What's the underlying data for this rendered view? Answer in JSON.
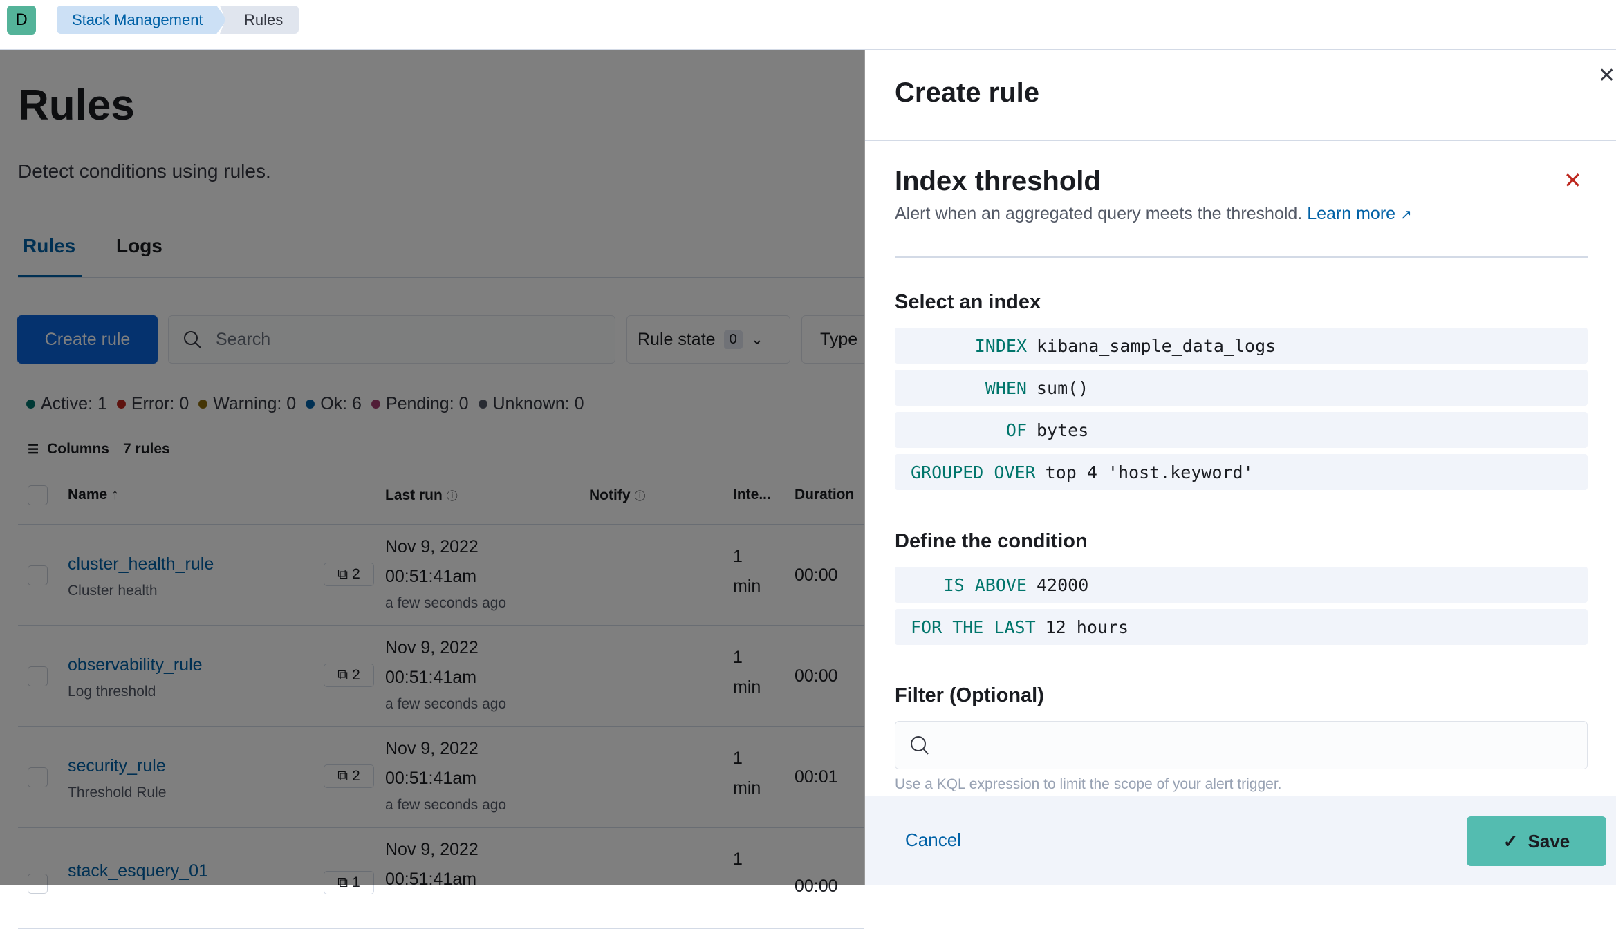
{
  "header": {
    "avatar": "D",
    "breadcrumbs": [
      "Stack Management",
      "Rules"
    ]
  },
  "page": {
    "title": "Rules",
    "subtitle": "Detect conditions using rules.",
    "tabs": [
      "Rules",
      "Logs"
    ],
    "create_label": "Create rule",
    "search_placeholder": "Search",
    "rule_state_label": "Rule state",
    "rule_state_count": "0",
    "type_label": "Type",
    "status": [
      {
        "label": "Active: 1",
        "color": "#00726b"
      },
      {
        "label": "Error: 0",
        "color": "#bd271e"
      },
      {
        "label": "Warning: 0",
        "color": "#8a6a0a"
      },
      {
        "label": "Ok: 6",
        "color": "#0061a6"
      },
      {
        "label": "Pending: 0",
        "color": "#a33a6e"
      },
      {
        "label": "Unknown: 0",
        "color": "#535966"
      }
    ],
    "columns_label": "Columns",
    "rule_count": "7 rules",
    "headers": {
      "name": "Name",
      "last_run": "Last run",
      "notify": "Notify",
      "interval": "Inte...",
      "duration": "Duration"
    },
    "rows": [
      {
        "name": "cluster_health_rule",
        "type": "Cluster health",
        "tags": "2",
        "date": "Nov 9, 2022",
        "time": "00:51:41am",
        "ago": "a few seconds ago",
        "interval_num": "1",
        "interval_unit": "min",
        "duration": "00:00"
      },
      {
        "name": "observability_rule",
        "type": "Log threshold",
        "tags": "2",
        "date": "Nov 9, 2022",
        "time": "00:51:41am",
        "ago": "a few seconds ago",
        "interval_num": "1",
        "interval_unit": "min",
        "duration": "00:00"
      },
      {
        "name": "security_rule",
        "type": "Threshold Rule",
        "tags": "2",
        "date": "Nov 9, 2022",
        "time": "00:51:41am",
        "ago": "a few seconds ago",
        "interval_num": "1",
        "interval_unit": "min",
        "duration": "00:01"
      },
      {
        "name": "stack_esquery_01",
        "type": "",
        "tags": "1",
        "date": "Nov 9, 2022",
        "time": "00:51:41am",
        "ago": "",
        "interval_num": "1",
        "interval_unit": "",
        "duration": "00:00"
      }
    ]
  },
  "flyout": {
    "title": "Create rule",
    "rule_type": "Index threshold",
    "description": "Alert when an aggregated query meets the threshold.",
    "learn_more": "Learn more",
    "select_index": "Select an index",
    "index_exprs": [
      {
        "kw": "INDEX",
        "val": "kibana_sample_data_logs"
      },
      {
        "kw": "WHEN",
        "val": "sum()"
      },
      {
        "kw": "OF",
        "val": "bytes"
      },
      {
        "kw": "GROUPED OVER",
        "val": "top 4 'host.keyword'"
      }
    ],
    "define_condition": "Define the condition",
    "cond_exprs": [
      {
        "kw": "IS ABOVE",
        "val": "42000"
      },
      {
        "kw": "FOR THE LAST",
        "val": "12 hours"
      }
    ],
    "filter_label": "Filter (Optional)",
    "filter_help": "Use a KQL expression to limit the scope of your alert trigger.",
    "cancel": "Cancel",
    "save": "Save",
    "save_color": "#54bcb0"
  }
}
